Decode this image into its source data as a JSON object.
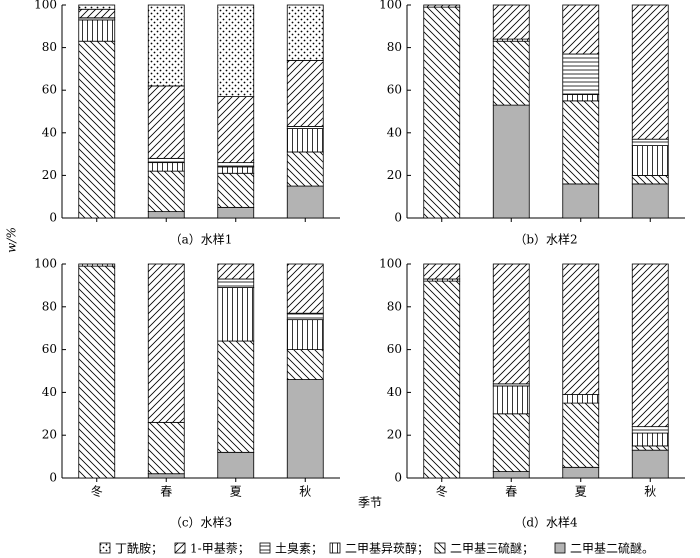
{
  "chart_data": {
    "type": "bar",
    "stacked": true,
    "ylabel": "w/%",
    "xlabel": "季节",
    "categories": [
      "冬",
      "春",
      "夏",
      "秋"
    ],
    "ylim": [
      0,
      100
    ],
    "yticks": [
      0,
      20,
      40,
      60,
      80,
      100
    ],
    "series": [
      {
        "name": "丁酰胺；",
        "pattern": "dots",
        "color": "#000000"
      },
      {
        "name": "1-甲基萘；",
        "pattern": "slash",
        "color": "#000000"
      },
      {
        "name": "土臭素；",
        "pattern": "hlines",
        "color": "#000000"
      },
      {
        "name": "二甲基异莰醇；",
        "pattern": "vlines",
        "color": "#000000"
      },
      {
        "name": "二甲基三硫醚；",
        "pattern": "backslash",
        "color": "#000000"
      },
      {
        "name": "二甲基二硫醚。",
        "pattern": "solid",
        "color": "#b3b3b3"
      }
    ],
    "panels": [
      {
        "title": "（a）水样1",
        "values": [
          [
            2,
            38,
            43,
            26
          ],
          [
            4,
            34,
            31,
            31
          ],
          [
            1,
            2,
            2,
            1
          ],
          [
            10,
            4,
            3,
            11
          ],
          [
            83,
            19,
            16,
            16
          ],
          [
            0,
            3,
            5,
            15
          ]
        ]
      },
      {
        "title": "（b）水样2",
        "values": [
          [
            0,
            0,
            0,
            0
          ],
          [
            1,
            16,
            23,
            63
          ],
          [
            0,
            0,
            19,
            3
          ],
          [
            0,
            1,
            3,
            14
          ],
          [
            99,
            30,
            39,
            4
          ],
          [
            0,
            53,
            16,
            16
          ]
        ]
      },
      {
        "title": "（c）水样3",
        "values": [
          [
            0,
            0,
            0,
            0
          ],
          [
            0,
            74,
            7,
            23
          ],
          [
            0,
            0,
            4,
            3
          ],
          [
            1,
            0,
            25,
            14
          ],
          [
            99,
            24,
            52,
            14
          ],
          [
            0,
            2,
            12,
            46
          ]
        ]
      },
      {
        "title": "（d）水样4",
        "values": [
          [
            0,
            0,
            0,
            0
          ],
          [
            7,
            56,
            61,
            76
          ],
          [
            0,
            1,
            0,
            3
          ],
          [
            1,
            13,
            4,
            6
          ],
          [
            92,
            27,
            30,
            2
          ],
          [
            0,
            3,
            5,
            13
          ]
        ]
      }
    ]
  }
}
